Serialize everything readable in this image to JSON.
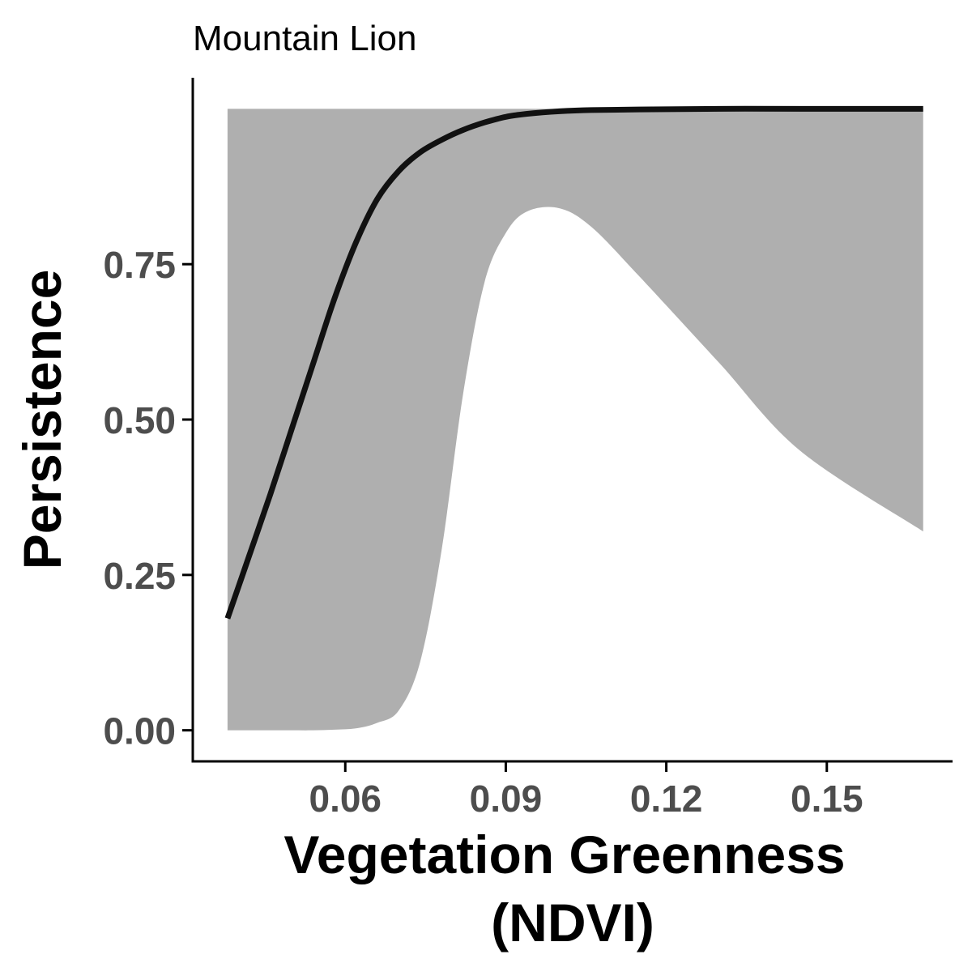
{
  "chart_data": {
    "type": "line",
    "title": "Mountain Lion",
    "xlabel_lines": [
      "Vegetation Greenness",
      "(NDVI)"
    ],
    "ylabel": "Persistence",
    "xlim": [
      0.0315,
      0.1735
    ],
    "ylim": [
      -0.05,
      1.05
    ],
    "x_ticks": [
      0.06,
      0.09,
      0.12,
      0.15
    ],
    "x_tick_labels": [
      "0.06",
      "0.09",
      "0.12",
      "0.15"
    ],
    "y_ticks": [
      0,
      0.25,
      0.5,
      0.75
    ],
    "y_tick_labels": [
      "0.00",
      "0.25",
      "0.50",
      "0.75"
    ],
    "grid": false,
    "colors": {
      "line": "#111111",
      "ribbon": "#afafaf",
      "axis": "#000000",
      "tick_text": "#4d4d4d"
    },
    "series": [
      {
        "x": [
          0.038,
          0.042,
          0.046,
          0.05,
          0.054,
          0.058,
          0.062,
          0.066,
          0.07,
          0.074,
          0.078,
          0.082,
          0.086,
          0.09,
          0.094,
          0.1,
          0.106,
          0.115,
          0.13,
          0.145,
          0.168
        ],
        "estimate": [
          0.18,
          0.28,
          0.38,
          0.485,
          0.59,
          0.695,
          0.785,
          0.855,
          0.9,
          0.93,
          0.95,
          0.966,
          0.978,
          0.987,
          0.992,
          0.996,
          0.998,
          0.999,
          1.0,
          1.0,
          1.0
        ],
        "lower": [
          0.0,
          0.0,
          0.0,
          0.0,
          0.0,
          0.001,
          0.003,
          0.012,
          0.032,
          0.11,
          0.29,
          0.54,
          0.72,
          0.8,
          0.835,
          0.84,
          0.81,
          0.73,
          0.59,
          0.45,
          0.32
        ],
        "upper": [
          1.0,
          1.0,
          1.0,
          1.0,
          1.0,
          1.0,
          1.0,
          1.0,
          1.0,
          1.0,
          1.0,
          1.0,
          1.0,
          1.0,
          1.0,
          1.0,
          1.0,
          1.0,
          1.0,
          1.0,
          1.0
        ]
      }
    ]
  }
}
